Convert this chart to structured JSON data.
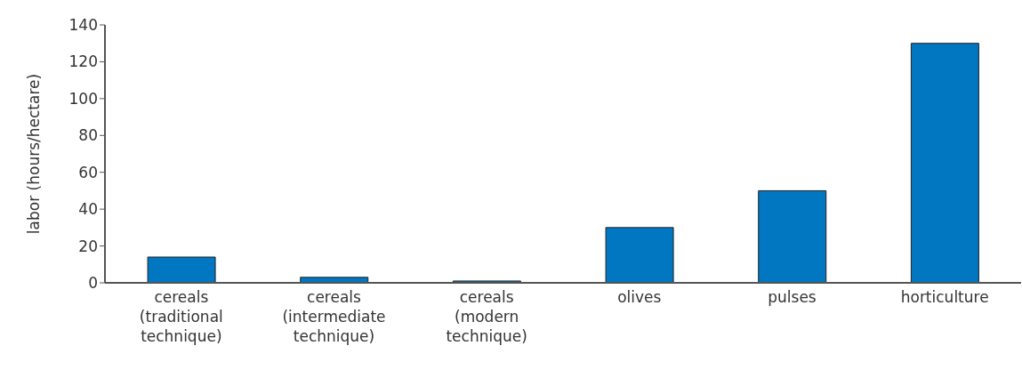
{
  "chart_data": {
    "type": "bar",
    "ylabel": "labor (hours/hectare)",
    "categories": [
      "cereals (traditional technique)",
      "cereals (intermediate technique)",
      "cereals (modern technique)",
      "olives",
      "pulses",
      "horticulture"
    ],
    "values": [
      14,
      3,
      1,
      30,
      50,
      130
    ],
    "color": "#0077c0",
    "ylim": [
      0,
      140
    ],
    "yticks": [
      0,
      20,
      40,
      60,
      80,
      100,
      120,
      140
    ],
    "grid": false
  }
}
